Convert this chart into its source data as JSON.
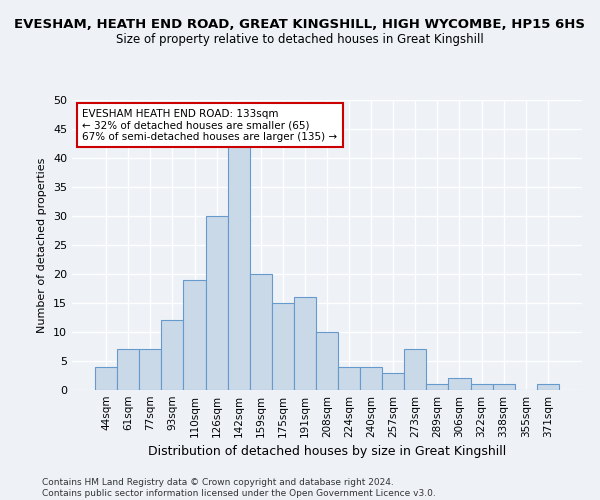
{
  "title": "EVESHAM, HEATH END ROAD, GREAT KINGSHILL, HIGH WYCOMBE, HP15 6HS",
  "subtitle": "Size of property relative to detached houses in Great Kingshill",
  "xlabel": "Distribution of detached houses by size in Great Kingshill",
  "ylabel": "Number of detached properties",
  "bin_labels": [
    "44sqm",
    "61sqm",
    "77sqm",
    "93sqm",
    "110sqm",
    "126sqm",
    "142sqm",
    "159sqm",
    "175sqm",
    "191sqm",
    "208sqm",
    "224sqm",
    "240sqm",
    "257sqm",
    "273sqm",
    "289sqm",
    "306sqm",
    "322sqm",
    "338sqm",
    "355sqm",
    "371sqm"
  ],
  "bar_values": [
    4,
    7,
    7,
    12,
    19,
    30,
    42,
    20,
    15,
    16,
    10,
    4,
    4,
    3,
    7,
    1,
    2,
    1,
    1,
    0,
    1
  ],
  "bar_color": "#c9d9e8",
  "bar_edge_color": "#6699cc",
  "ylim": [
    0,
    50
  ],
  "yticks": [
    0,
    5,
    10,
    15,
    20,
    25,
    30,
    35,
    40,
    45,
    50
  ],
  "annotation_text": "EVESHAM HEATH END ROAD: 133sqm\n← 32% of detached houses are smaller (65)\n67% of semi-detached houses are larger (135) →",
  "annotation_box_color": "#ffffff",
  "annotation_box_edge": "#cc0000",
  "footer_line1": "Contains HM Land Registry data © Crown copyright and database right 2024.",
  "footer_line2": "Contains public sector information licensed under the Open Government Licence v3.0.",
  "background_color": "#eef2f7",
  "plot_background": "#eef2f7"
}
